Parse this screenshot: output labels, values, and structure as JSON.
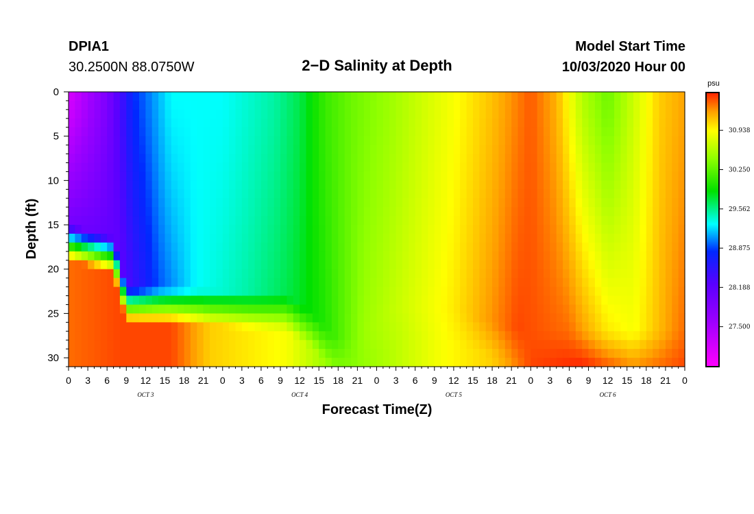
{
  "header": {
    "station": "DPIA1",
    "coords": "30.2500N 88.0750W",
    "title": "2−D Salinity at Depth",
    "model_start_label": "Model Start Time",
    "model_start_value": "10/03/2020 Hour 00"
  },
  "chart_data": {
    "type": "heatmap",
    "title": "2−D Salinity at Depth",
    "xlabel": "Forecast Time(Z)",
    "ylabel": "Depth (ft)",
    "x_range_hours": [
      0,
      96
    ],
    "x_tick_step_hours": 3,
    "x_tick_labels": [
      "0",
      "3",
      "6",
      "9",
      "12",
      "15",
      "18",
      "21",
      "0",
      "3",
      "6",
      "9",
      "12",
      "15",
      "18",
      "21",
      "0",
      "3",
      "6",
      "9",
      "12",
      "15",
      "18",
      "21",
      "0",
      "3",
      "6",
      "9",
      "12",
      "15",
      "18",
      "21",
      "0"
    ],
    "day_labels": [
      {
        "label": "OCT 3",
        "hour": 12
      },
      {
        "label": "OCT 4",
        "hour": 36
      },
      {
        "label": "OCT 5",
        "hour": 60
      },
      {
        "label": "OCT 6",
        "hour": 84
      }
    ],
    "y_range_ft": [
      0,
      31
    ],
    "y_ticks": [
      0,
      5,
      10,
      15,
      20,
      25,
      30
    ],
    "colorbar": {
      "unit": "psu",
      "range": [
        26.8,
        31.6
      ],
      "tick_values": [
        27.5,
        28.188,
        28.875,
        29.562,
        30.25,
        30.938
      ],
      "tick_labels": [
        "27.500",
        "28.188",
        "28.875",
        "29.562",
        "30.250",
        "30.938"
      ]
    }
  }
}
